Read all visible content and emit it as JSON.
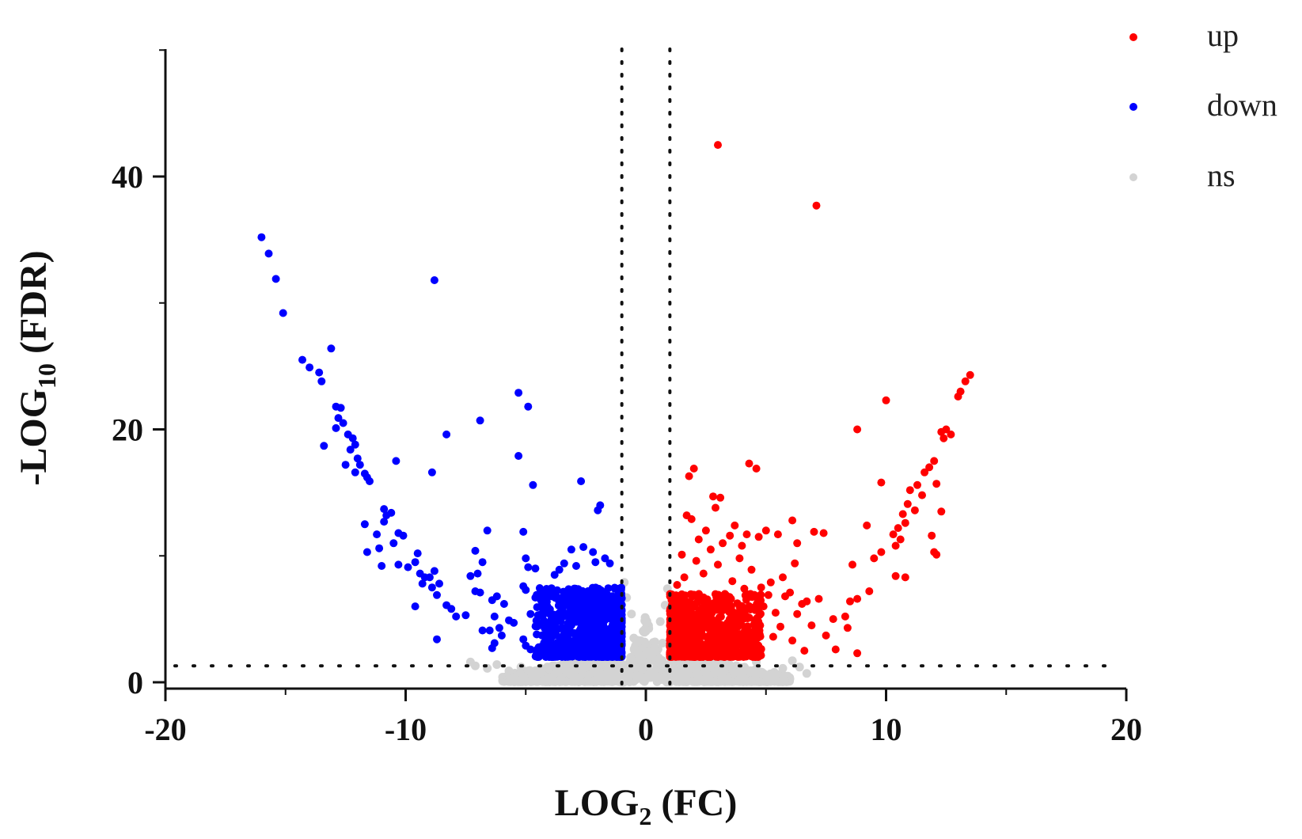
{
  "chart_data": {
    "type": "scatter",
    "title": "",
    "xlabel": {
      "main": "LOG",
      "sub": "2",
      "suffix": " (FC)"
    },
    "ylabel": {
      "main": "-LOG",
      "sub": "10",
      "suffix": " (FDR)"
    },
    "xlim": [
      -20,
      20
    ],
    "ylim": [
      0,
      50
    ],
    "xticks": [
      -20,
      -10,
      0,
      10,
      20
    ],
    "xtick_labels": [
      "-20",
      "-10",
      "0",
      "10",
      "20"
    ],
    "yticks": [
      0,
      20,
      40
    ],
    "ytick_labels": [
      "0",
      "20",
      "40"
    ],
    "thresholds": {
      "log2fc": [
        -1,
        1
      ],
      "neg_log10_fdr": 1.3
    },
    "legend": {
      "position": "top-right",
      "entries": [
        {
          "key": "up",
          "label": "up",
          "color": "#ff0000"
        },
        {
          "key": "down",
          "label": "down",
          "color": "#0000ff"
        },
        {
          "key": "ns",
          "label": "ns",
          "color": "#d3d3d3"
        }
      ]
    },
    "series": [
      {
        "name": "up",
        "color": "#ff0000",
        "points": [
          [
            3,
            42.5
          ],
          [
            7.1,
            37.7
          ],
          [
            13.5,
            24.3
          ],
          [
            13.3,
            23.8
          ],
          [
            13.1,
            23
          ],
          [
            13,
            22.6
          ],
          [
            10,
            22.3
          ],
          [
            12.5,
            20
          ],
          [
            12.3,
            19.8
          ],
          [
            12.7,
            19.6
          ],
          [
            12.4,
            19.3
          ],
          [
            8.8,
            20
          ],
          [
            4.3,
            17.3
          ],
          [
            4.6,
            16.9
          ],
          [
            11.8,
            17
          ],
          [
            11.6,
            16.6
          ],
          [
            12,
            17.5
          ],
          [
            9.8,
            15.8
          ],
          [
            11.3,
            15.6
          ],
          [
            11,
            15.2
          ],
          [
            12.1,
            15.7
          ],
          [
            11.5,
            14.8
          ],
          [
            10.9,
            14.1
          ],
          [
            11.2,
            13.6
          ],
          [
            10.7,
            13.3
          ],
          [
            12.3,
            13.5
          ],
          [
            10.8,
            12.6
          ],
          [
            10.5,
            12.2
          ],
          [
            10.3,
            11.7
          ],
          [
            10.6,
            11.3
          ],
          [
            10.4,
            10.8
          ],
          [
            11.9,
            11.6
          ],
          [
            12,
            10.3
          ],
          [
            12.1,
            10.1
          ],
          [
            9.2,
            12.4
          ],
          [
            8.6,
            9.3
          ],
          [
            9.5,
            9.8
          ],
          [
            9.8,
            10.3
          ],
          [
            10.8,
            8.3
          ],
          [
            10.4,
            8.4
          ],
          [
            9.3,
            7.2
          ],
          [
            8.8,
            6.6
          ],
          [
            8.5,
            6.4
          ],
          [
            8.3,
            5.2
          ],
          [
            8.4,
            4.3
          ],
          [
            7.8,
            5
          ],
          [
            7.2,
            6.6
          ],
          [
            6.7,
            6.4
          ],
          [
            6.3,
            5.4
          ],
          [
            6.9,
            4.5
          ],
          [
            7.5,
            3.7
          ],
          [
            8.8,
            2.3
          ],
          [
            7.4,
            11.8
          ],
          [
            7,
            11.9
          ],
          [
            6.1,
            12.8
          ],
          [
            5.5,
            11.7
          ],
          [
            5,
            12
          ],
          [
            4.7,
            11.5
          ],
          [
            4.2,
            11.7
          ],
          [
            6.3,
            11
          ],
          [
            6.2,
            9.4
          ],
          [
            5.7,
            8.3
          ],
          [
            5.2,
            7.9
          ],
          [
            4.8,
            7.5
          ],
          [
            6,
            7.1
          ],
          [
            5.8,
            6.8
          ],
          [
            6.5,
            6.2
          ],
          [
            1.8,
            16.3
          ],
          [
            2,
            16.9
          ],
          [
            2.8,
            14.7
          ],
          [
            3.1,
            14.6
          ],
          [
            2.9,
            13.8
          ],
          [
            1.7,
            13.2
          ],
          [
            1.9,
            12.9
          ],
          [
            3.7,
            12.4
          ],
          [
            3.5,
            11.6
          ],
          [
            2.5,
            12
          ],
          [
            2.2,
            11.3
          ],
          [
            3.2,
            11
          ],
          [
            4,
            10.8
          ],
          [
            2.7,
            10.5
          ],
          [
            1.5,
            10.1
          ],
          [
            2.1,
            9.6
          ],
          [
            3,
            9.3
          ],
          [
            3.9,
            9.8
          ],
          [
            4.4,
            8.9
          ],
          [
            2.4,
            8.6
          ],
          [
            1.6,
            8.3
          ],
          [
            3.6,
            8
          ],
          [
            4.1,
            7.4
          ],
          [
            5.1,
            6.9
          ],
          [
            4.9,
            6
          ],
          [
            5.4,
            5.5
          ],
          [
            4.6,
            5
          ],
          [
            5.6,
            4.4
          ],
          [
            5.3,
            3.6
          ],
          [
            4.5,
            3.1
          ],
          [
            6.1,
            3.3
          ],
          [
            6.6,
            2.5
          ],
          [
            7.9,
            2.6
          ],
          [
            1.3,
            7.7
          ],
          [
            1.2,
            6.3
          ]
        ],
        "cluster": {
          "x_range": [
            1.0,
            4.8
          ],
          "y_range": [
            2.0,
            7.0
          ],
          "count": 850,
          "seed": 11
        }
      },
      {
        "name": "down",
        "color": "#0000ff",
        "points": [
          [
            -16,
            35.2
          ],
          [
            -15.7,
            33.9
          ],
          [
            -15.4,
            31.9
          ],
          [
            -15.1,
            29.2
          ],
          [
            -8.8,
            31.8
          ],
          [
            -13.1,
            26.4
          ],
          [
            -14.3,
            25.5
          ],
          [
            -14,
            24.9
          ],
          [
            -13.6,
            24.5
          ],
          [
            -13.5,
            23.8
          ],
          [
            -5.3,
            22.9
          ],
          [
            -12.9,
            21.8
          ],
          [
            -12.7,
            21.7
          ],
          [
            -4.9,
            21.8
          ],
          [
            -12.8,
            20.9
          ],
          [
            -12.6,
            20.5
          ],
          [
            -12.9,
            20.1
          ],
          [
            -6.9,
            20.7
          ],
          [
            -12.4,
            19.6
          ],
          [
            -12.2,
            19.3
          ],
          [
            -12.1,
            18.8
          ],
          [
            -12.3,
            18.4
          ],
          [
            -8.3,
            19.6
          ],
          [
            -13.4,
            18.7
          ],
          [
            -12,
            17.7
          ],
          [
            -11.9,
            17.2
          ],
          [
            -12.5,
            17.2
          ],
          [
            -11.7,
            16.5
          ],
          [
            -12.1,
            16.6
          ],
          [
            -10.4,
            17.5
          ],
          [
            -5.3,
            17.9
          ],
          [
            -11.5,
            15.9
          ],
          [
            -11.6,
            16.2
          ],
          [
            -8.9,
            16.6
          ],
          [
            -4.7,
            15.6
          ],
          [
            -2.7,
            15.9
          ],
          [
            -10.9,
            13.7
          ],
          [
            -10.8,
            13.2
          ],
          [
            -10.6,
            13.4
          ],
          [
            -10.9,
            12.7
          ],
          [
            -1.9,
            14
          ],
          [
            -2,
            13.6
          ],
          [
            -11.7,
            12.5
          ],
          [
            -10.3,
            11.8
          ],
          [
            -10.1,
            11.6
          ],
          [
            -11.2,
            11.7
          ],
          [
            -10.5,
            11
          ],
          [
            -11.1,
            10.6
          ],
          [
            -11.6,
            10.3
          ],
          [
            -6.6,
            12
          ],
          [
            -5.1,
            11.9
          ],
          [
            -9.5,
            10.2
          ],
          [
            -9.6,
            9.5
          ],
          [
            -10.3,
            9.3
          ],
          [
            -9.9,
            9.1
          ],
          [
            -11,
            9.2
          ],
          [
            -9.4,
            8.6
          ],
          [
            -9.2,
            8.3
          ],
          [
            -9,
            8.3
          ],
          [
            -8.8,
            8.8
          ],
          [
            -9.3,
            7.8
          ],
          [
            -8.6,
            7.8
          ],
          [
            -8.9,
            7.5
          ],
          [
            -8.7,
            6.9
          ],
          [
            -8.3,
            6.1
          ],
          [
            -8.1,
            5.8
          ],
          [
            -7.9,
            5.2
          ],
          [
            -7.5,
            5.3
          ],
          [
            -9.6,
            6
          ],
          [
            -8.7,
            3.4
          ],
          [
            -7.1,
            10.4
          ],
          [
            -6.8,
            9.5
          ],
          [
            -7,
            8.6
          ],
          [
            -7.3,
            8.4
          ],
          [
            -6.9,
            7.1
          ],
          [
            -7.1,
            7.2
          ],
          [
            -6.2,
            6.8
          ],
          [
            -6.4,
            6.5
          ],
          [
            -5,
            9.8
          ],
          [
            -4.9,
            9.1
          ],
          [
            -4.6,
            9
          ],
          [
            -5.1,
            7.6
          ],
          [
            -5,
            7.3
          ],
          [
            -4.6,
            6.7
          ],
          [
            -4.8,
            5.4
          ],
          [
            -5.9,
            6.2
          ],
          [
            -6.3,
            5.2
          ],
          [
            -5.7,
            4.9
          ],
          [
            -5.5,
            4.7
          ],
          [
            -6.1,
            4.3
          ],
          [
            -6.5,
            4.1
          ],
          [
            -6.8,
            4.1
          ],
          [
            -6,
            3.7
          ],
          [
            -6.3,
            3.1
          ],
          [
            -6.4,
            2.7
          ],
          [
            -5.1,
            3.4
          ],
          [
            -5,
            2.9
          ],
          [
            -4.8,
            2.6
          ],
          [
            -3.6,
            8.9
          ],
          [
            -3.4,
            9.4
          ],
          [
            -3.1,
            10.5
          ],
          [
            -2.6,
            10.7
          ],
          [
            -2.2,
            10.3
          ],
          [
            -1.7,
            9.8
          ],
          [
            -1.5,
            9.4
          ],
          [
            -2.9,
            9.2
          ],
          [
            -2.1,
            9.5
          ],
          [
            -3.8,
            8.5
          ],
          [
            -4.1,
            6
          ],
          [
            -4.3,
            5.2
          ]
        ],
        "cluster": {
          "x_range": [
            -4.6,
            -1.0
          ],
          "y_range": [
            2.0,
            7.5
          ],
          "count": 850,
          "seed": 23
        }
      },
      {
        "name": "ns",
        "color": "#d3d3d3",
        "points": [
          [
            -7.3,
            1.6
          ],
          [
            -7.1,
            1.3
          ],
          [
            -6.6,
            1.1
          ],
          [
            -6.2,
            1.4
          ],
          [
            -5.7,
            0.9
          ],
          [
            -5.2,
            1.2
          ],
          [
            6.1,
            1.7
          ],
          [
            6.4,
            1.2
          ],
          [
            6.7,
            0.7
          ],
          [
            5.7,
            1.1
          ],
          [
            5.2,
            0.5
          ],
          [
            4.6,
            1.6
          ],
          [
            4.1,
            0.9
          ],
          [
            -4.4,
            0.7
          ],
          [
            -3.9,
            0.4
          ],
          [
            -3.1,
            0.6
          ],
          [
            -2.4,
            0.2
          ],
          [
            3.2,
            0.4
          ],
          [
            2.6,
            0.3
          ],
          [
            -1.8,
            0.5
          ],
          [
            1.7,
            0.6
          ],
          [
            -0.6,
            1.8
          ],
          [
            0.6,
            1.6
          ],
          [
            -0.5,
            3.5
          ],
          [
            0.7,
            3.1
          ],
          [
            0.6,
            4.8
          ],
          [
            -0.6,
            5.4
          ],
          [
            0.8,
            6.1
          ],
          [
            -0.8,
            6.7
          ],
          [
            0.9,
            7.4
          ],
          [
            -0.9,
            7.9
          ],
          [
            0.4,
            2.5
          ],
          [
            -0.3,
            2.2
          ]
        ],
        "cluster": {
          "x_range": [
            -6.0,
            6.0
          ],
          "y_range": [
            0.0,
            2.6
          ],
          "count": 1300,
          "seed": 37
        }
      }
    ]
  }
}
